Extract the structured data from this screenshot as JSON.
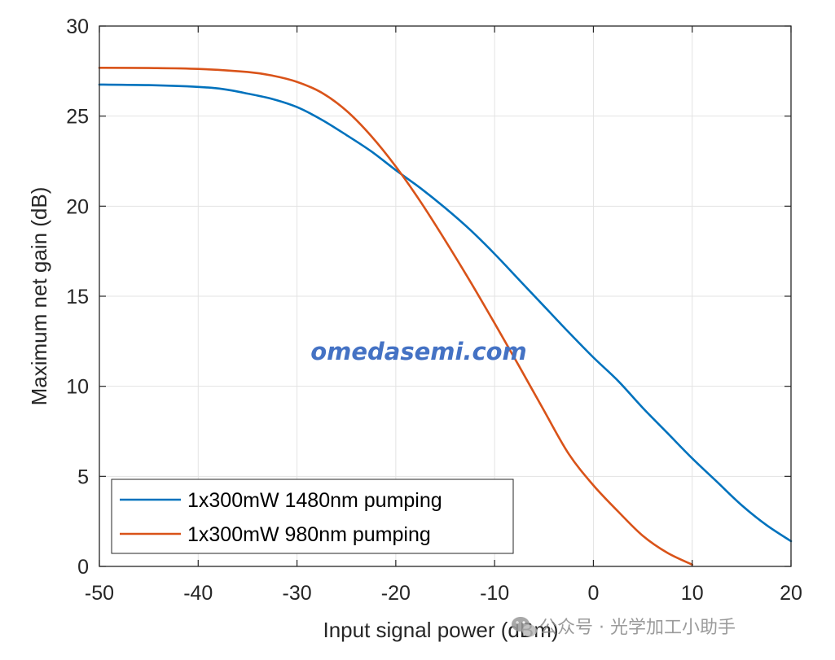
{
  "chart_data": {
    "type": "line",
    "title": "",
    "xlabel": "Input signal power (dBm)",
    "ylabel": "Maximum net gain (dB)",
    "xlim": [
      -50,
      20
    ],
    "ylim": [
      0,
      30
    ],
    "xticks": [
      -50,
      -40,
      -30,
      -20,
      -10,
      0,
      10,
      20
    ],
    "yticks": [
      0,
      5,
      10,
      15,
      20,
      25,
      30
    ],
    "xtick_labels": [
      "-50",
      "-40",
      "-30",
      "-20",
      "-10",
      "0",
      "10",
      "20"
    ],
    "ytick_labels": [
      "0",
      "5",
      "10",
      "15",
      "20",
      "25",
      "30"
    ],
    "grid": true,
    "legend_position": "bottom-left",
    "series": [
      {
        "name": "1x300mW 1480nm pumping",
        "color": "#0072BD",
        "x": [
          -50,
          -45,
          -40,
          -37.5,
          -35,
          -32.5,
          -30,
          -27.5,
          -25,
          -22.5,
          -20,
          -17.5,
          -15,
          -12.5,
          -10,
          -7.5,
          -5,
          -2.5,
          0,
          2.5,
          5,
          7.5,
          10,
          12.5,
          15,
          17.5,
          20
        ],
        "y": [
          26.75,
          26.72,
          26.62,
          26.5,
          26.25,
          25.95,
          25.5,
          24.8,
          23.95,
          23.05,
          22.0,
          21.0,
          19.9,
          18.7,
          17.35,
          15.9,
          14.45,
          13.0,
          11.6,
          10.3,
          8.8,
          7.4,
          6.0,
          4.7,
          3.4,
          2.3,
          1.4
        ]
      },
      {
        "name": "1x300mW 980nm pumping",
        "color": "#D95319",
        "x": [
          -50,
          -45,
          -40,
          -35,
          -32.5,
          -30,
          -27.5,
          -25,
          -22.5,
          -20,
          -17.5,
          -15,
          -12.5,
          -10,
          -7.5,
          -5,
          -2.5,
          0,
          2.5,
          5,
          7.5,
          10
        ],
        "y": [
          27.68,
          27.67,
          27.62,
          27.45,
          27.25,
          26.9,
          26.3,
          25.3,
          23.9,
          22.2,
          20.25,
          18.1,
          15.85,
          13.5,
          11.1,
          8.65,
          6.25,
          4.5,
          3.05,
          1.7,
          0.75,
          0.1
        ]
      }
    ]
  },
  "watermark": {
    "text": "omedasemi.com",
    "color": "#4472C4"
  },
  "footer": {
    "icon": "wechat-icon",
    "text": "公众号 · 光学加工小助手"
  }
}
